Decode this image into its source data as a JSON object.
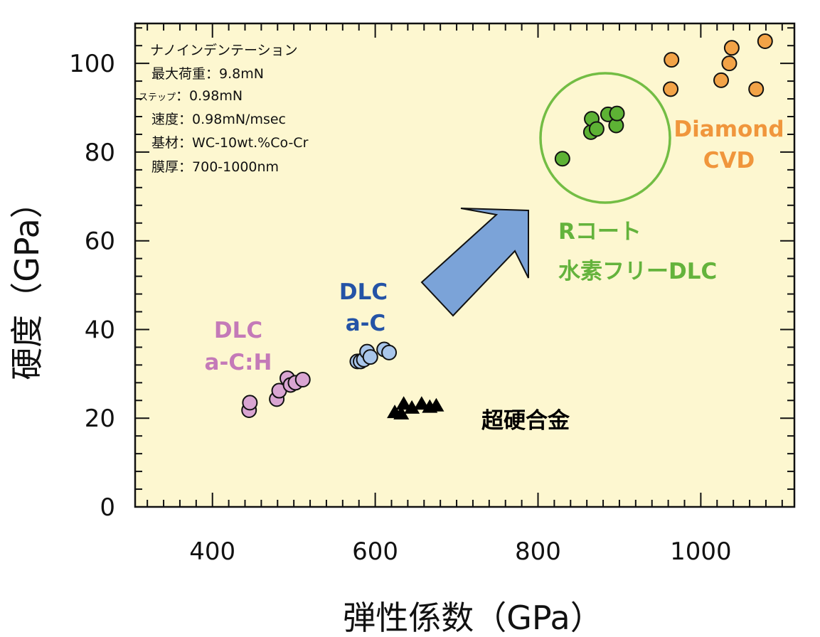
{
  "chart_data": {
    "type": "scatter",
    "xlabel": "弾性係数（GPa）",
    "ylabel": "硬度（GPa）",
    "xlim": [
      305,
      1115
    ],
    "ylim": [
      0,
      109
    ],
    "x_ticks": [
      400,
      600,
      800,
      1000
    ],
    "y_ticks": [
      0,
      20,
      40,
      60,
      80,
      100
    ],
    "grid": false,
    "background": "#fdf7d0",
    "conditions": {
      "title": "ナノインデンテーション",
      "lines": [
        {
          "label": "最大荷重",
          "value": "9.8mN"
        },
        {
          "label": "ステップ",
          "value": "0.98mN"
        },
        {
          "label": "速度",
          "value": "0.98mN/msec"
        },
        {
          "label": "基材",
          "value": "WC-10wt.%Co-Cr"
        },
        {
          "label": "膜厚",
          "value": "700-1000nm"
        }
      ]
    },
    "series": [
      {
        "name": "DLC a-C:H",
        "label_lines": [
          "DLC",
          "a-C:H"
        ],
        "marker": "circle",
        "color": "#d9a5d2",
        "label_color": "#c47ab8",
        "points": [
          [
            445,
            21.8
          ],
          [
            446,
            23.5
          ],
          [
            479,
            24.3
          ],
          [
            482,
            26.2
          ],
          [
            492,
            29
          ],
          [
            496,
            27.5
          ],
          [
            502,
            28
          ],
          [
            511,
            28.7
          ]
        ]
      },
      {
        "name": "DLC a-C",
        "label_lines": [
          "DLC",
          "a-C"
        ],
        "marker": "circle",
        "color": "#a9c6eb",
        "label_color": "#2453a6",
        "points": [
          [
            578,
            32.8
          ],
          [
            582,
            32.8
          ],
          [
            586,
            33.2
          ],
          [
            590,
            35
          ],
          [
            594,
            33.8
          ],
          [
            611,
            35.5
          ],
          [
            617,
            34.8
          ]
        ]
      },
      {
        "name": "超硬合金",
        "label_lines": [
          "超硬合金"
        ],
        "marker": "triangle",
        "color": "#000000",
        "label_color": "#000000",
        "points": [
          [
            624,
            21.3
          ],
          [
            632,
            21
          ],
          [
            635,
            23.2
          ],
          [
            645,
            22.3
          ],
          [
            657,
            23.2
          ],
          [
            667,
            22.5
          ],
          [
            675,
            22.8
          ]
        ]
      },
      {
        "name": "Rコート 水素フリーDLC",
        "label_lines": [
          "Rコート",
          "水素フリーDLC"
        ],
        "marker": "circle",
        "color": "#5db234",
        "label_color": "#64b33c",
        "points": [
          [
            830,
            78.5
          ],
          [
            865,
            84.5
          ],
          [
            866,
            87.5
          ],
          [
            872,
            85.2
          ],
          [
            886,
            88.5
          ],
          [
            896,
            86
          ],
          [
            897,
            88.7
          ]
        ]
      },
      {
        "name": "Diamond CVD",
        "label_lines": [
          "Diamond",
          "CVD"
        ],
        "marker": "circle",
        "color": "#f2a347",
        "label_color": "#f0963c",
        "points": [
          [
            963,
            94.2
          ],
          [
            964,
            100.8
          ],
          [
            1025,
            96.2
          ],
          [
            1035,
            100
          ],
          [
            1038,
            103.5
          ],
          [
            1068,
            94.2
          ],
          [
            1079,
            105
          ]
        ]
      }
    ]
  }
}
